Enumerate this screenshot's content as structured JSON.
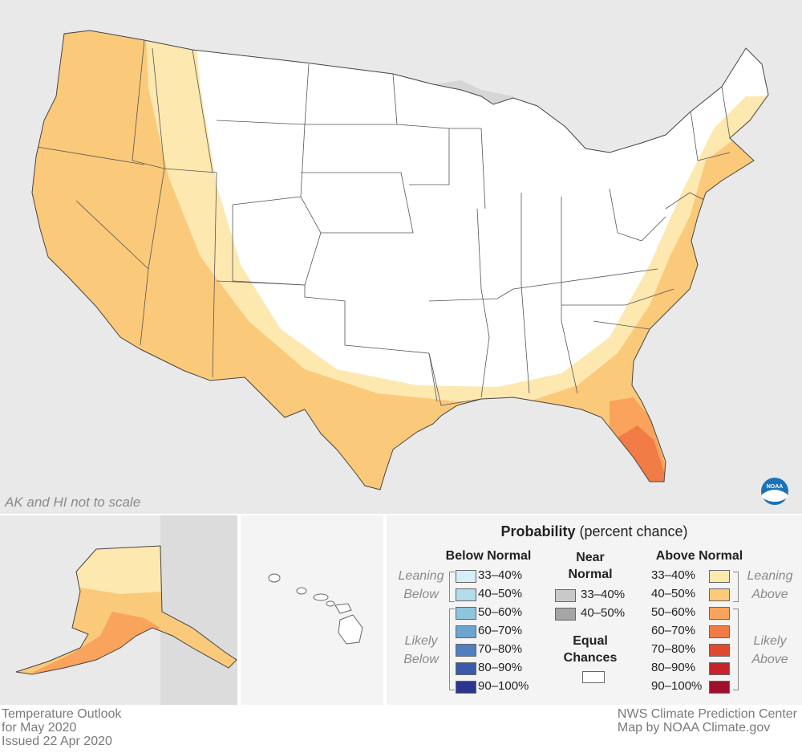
{
  "colors": {
    "land": "#ffffff",
    "background": "#e9e9e9",
    "water": "#d6d6d6",
    "state_border": "#555555",
    "leaning_above": "#fde8b0",
    "above_40_50": "#fbc97a",
    "above_50_60": "#f9a35c",
    "above_60_70": "#f27c45",
    "noaa_blue": "#1a73b8"
  },
  "map_note": "AK and HI not to scale",
  "footer_left": {
    "line1": "Temperature Outlook",
    "line2": "for May 2020",
    "line3": "Issued 22 Apr 2020"
  },
  "footer_right": {
    "line1": "NWS Climate Prediction Center",
    "line2": "Map by NOAA Climate.gov"
  },
  "logo": "NOAA",
  "legend": {
    "title_bold": "Probability",
    "title_rest": "(percent chance)",
    "below": {
      "heading": "Below Normal",
      "leaning_label": [
        "Leaning",
        "Below"
      ],
      "likely_label": [
        "Likely",
        "Below"
      ],
      "items": [
        {
          "label": "33–40%",
          "color": "#d6eef5"
        },
        {
          "label": "40–50%",
          "color": "#b3dcec"
        },
        {
          "label": "50–60%",
          "color": "#8fc4dd"
        },
        {
          "label": "60–70%",
          "color": "#6ea5cf"
        },
        {
          "label": "70–80%",
          "color": "#4f7fbf"
        },
        {
          "label": "80–90%",
          "color": "#3a5aab"
        },
        {
          "label": "90–100%",
          "color": "#2b3590"
        }
      ]
    },
    "near": {
      "heading": [
        "Near",
        "Normal"
      ],
      "items": [
        {
          "label": "33–40%",
          "color": "#c9c9c9"
        },
        {
          "label": "40–50%",
          "color": "#a5a5a5"
        }
      ],
      "equal_heading": [
        "Equal",
        "Chances"
      ],
      "equal_color": "#ffffff"
    },
    "above": {
      "heading": "Above Normal",
      "leaning_label": [
        "Leaning",
        "Above"
      ],
      "likely_label": [
        "Likely",
        "Above"
      ],
      "items": [
        {
          "label": "33–40%",
          "color": "#fde8b0"
        },
        {
          "label": "40–50%",
          "color": "#fbc97a"
        },
        {
          "label": "50–60%",
          "color": "#f9a35c"
        },
        {
          "label": "60–70%",
          "color": "#f27c45"
        },
        {
          "label": "70–80%",
          "color": "#e0492f"
        },
        {
          "label": "80–90%",
          "color": "#c8232a"
        },
        {
          "label": "90–100%",
          "color": "#a0102a"
        }
      ]
    }
  }
}
